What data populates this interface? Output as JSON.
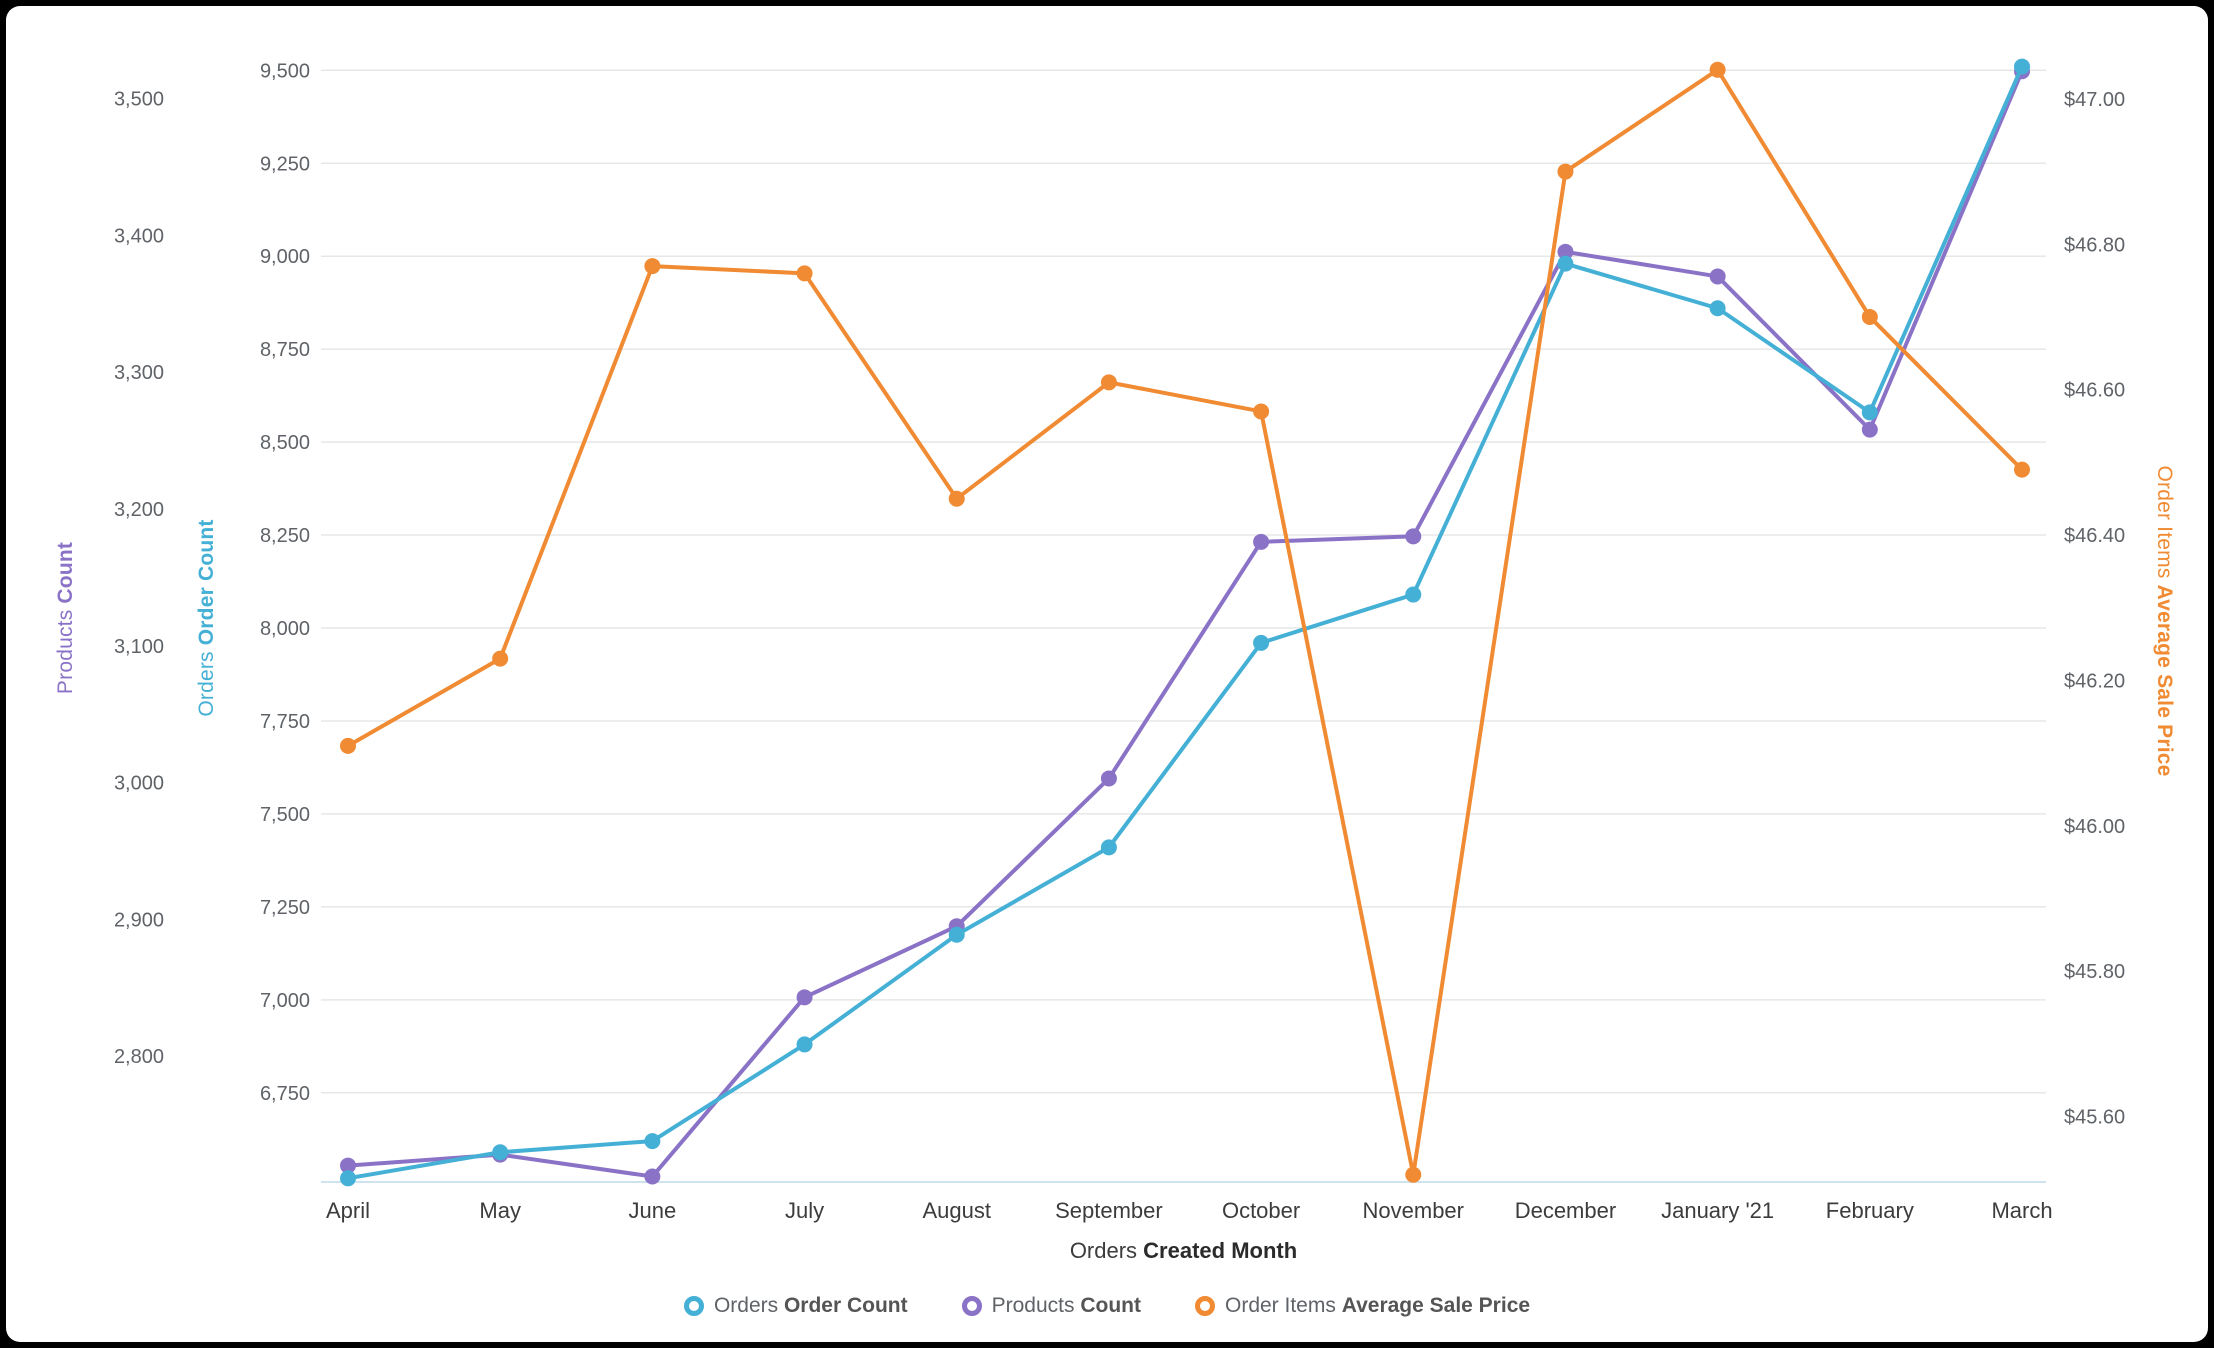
{
  "chart_data": {
    "type": "line",
    "x": [
      "April",
      "May",
      "June",
      "July",
      "August",
      "September",
      "October",
      "November",
      "December",
      "January '21",
      "February",
      "March"
    ],
    "xlabel": {
      "regular": "Orders",
      "bold": "Created Month"
    },
    "grid_axis": "orders",
    "grid": true,
    "legend_position": "bottom",
    "axes": {
      "products": {
        "title_regular": "Products",
        "title_bold": "Count",
        "color": "#8A72C7",
        "side": "left-outer",
        "min": 2708,
        "max": 3537,
        "ticks": [
          {
            "v": 3500,
            "label": "3,500"
          },
          {
            "v": 3400,
            "label": "3,400"
          },
          {
            "v": 3300,
            "label": "3,300"
          },
          {
            "v": 3200,
            "label": "3,200"
          },
          {
            "v": 3100,
            "label": "3,100"
          },
          {
            "v": 3000,
            "label": "3,000"
          },
          {
            "v": 2900,
            "label": "2,900"
          },
          {
            "v": 2800,
            "label": "2,800"
          }
        ]
      },
      "orders": {
        "title_regular": "Orders",
        "title_bold": "Order Count",
        "color": "#45B0D5",
        "side": "left-inner",
        "min": 6510,
        "max": 9560,
        "ticks": [
          {
            "v": 9500,
            "label": "9,500"
          },
          {
            "v": 9250,
            "label": "9,250"
          },
          {
            "v": 9000,
            "label": "9,000"
          },
          {
            "v": 8750,
            "label": "8,750"
          },
          {
            "v": 8500,
            "label": "8,500"
          },
          {
            "v": 8250,
            "label": "8,250"
          },
          {
            "v": 8000,
            "label": "8,000"
          },
          {
            "v": 7750,
            "label": "7,750"
          },
          {
            "v": 7500,
            "label": "7,500"
          },
          {
            "v": 7250,
            "label": "7,250"
          },
          {
            "v": 7000,
            "label": "7,000"
          },
          {
            "v": 6750,
            "label": "6,750"
          }
        ]
      },
      "price": {
        "title_regular": "Order Items",
        "title_bold": "Average Sale Price",
        "color": "#F08B33",
        "side": "right",
        "min": 45.51,
        "max": 47.07,
        "ticks": [
          {
            "v": 47.0,
            "label": "$47.00"
          },
          {
            "v": 46.8,
            "label": "$46.80"
          },
          {
            "v": 46.6,
            "label": "$46.60"
          },
          {
            "v": 46.4,
            "label": "$46.40"
          },
          {
            "v": 46.2,
            "label": "$46.20"
          },
          {
            "v": 46.0,
            "label": "$46.00"
          },
          {
            "v": 45.8,
            "label": "$45.80"
          },
          {
            "v": 45.6,
            "label": "$45.60"
          }
        ]
      }
    },
    "series": [
      {
        "name_regular": "Orders",
        "name_bold": "Order Count",
        "axis": "orders",
        "color": "#45B0D5",
        "values": [
          6520,
          6590,
          6620,
          6880,
          7175,
          7410,
          7960,
          8090,
          8980,
          8860,
          8580,
          9510
        ]
      },
      {
        "name_regular": "Products",
        "name_bold": "Count",
        "axis": "products",
        "color": "#8A72C7",
        "values": [
          2720,
          2728,
          2712,
          2843,
          2895,
          3003,
          3176,
          3180,
          3388,
          3370,
          3258,
          3520
        ]
      },
      {
        "name_regular": "Order Items",
        "name_bold": "Average Sale Price",
        "axis": "price",
        "color": "#F08B33",
        "values": [
          46.11,
          46.23,
          46.77,
          46.76,
          46.45,
          46.61,
          46.57,
          45.52,
          46.9,
          47.04,
          46.7,
          46.49
        ]
      }
    ]
  }
}
